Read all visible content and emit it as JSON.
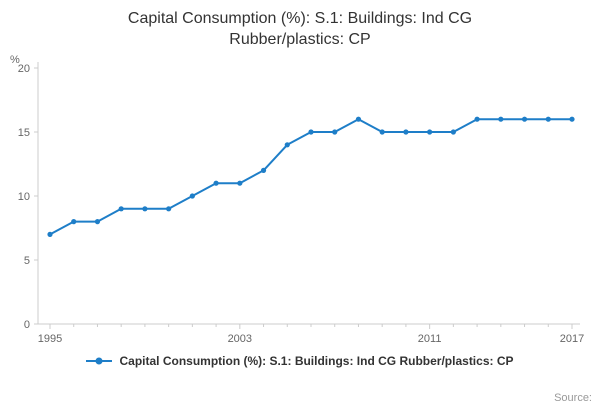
{
  "chart_data": {
    "type": "line",
    "title": "Capital Consumption (%): S.1: Buildings: Ind CG Rubber/plastics: CP",
    "series_name": "Capital Consumption (%): S.1: Buildings: Ind CG Rubber/plastics: CP",
    "ylabel": "%",
    "xlabel": "",
    "x": [
      1995,
      1996,
      1997,
      1998,
      1999,
      2000,
      2001,
      2002,
      2003,
      2004,
      2005,
      2006,
      2007,
      2008,
      2009,
      2010,
      2011,
      2012,
      2013,
      2014,
      2015,
      2016,
      2017
    ],
    "values": [
      7,
      8,
      8,
      9,
      9,
      9,
      10,
      11,
      11,
      12,
      14,
      15,
      15,
      16,
      15,
      15,
      15,
      15,
      16,
      16,
      16,
      16,
      16
    ],
    "ylim": [
      0,
      20
    ],
    "yticks": [
      0,
      5,
      10,
      15,
      20
    ],
    "xticks": [
      1995,
      2003,
      2011,
      2017
    ],
    "grid": false,
    "legend_position": "bottom",
    "line_color": "#1e7ec8",
    "axis_color": "#cccccc",
    "tick_color": "#666666"
  },
  "source": {
    "label": "Source:"
  }
}
